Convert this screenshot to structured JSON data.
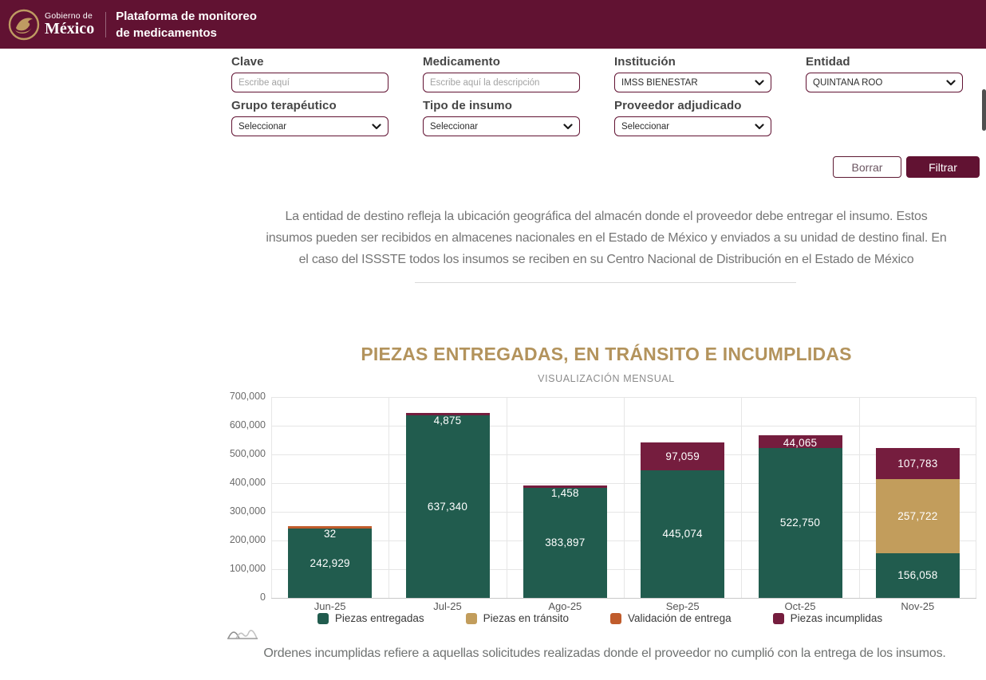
{
  "header": {
    "logo_small": "Gobierno de",
    "logo_big": "México",
    "app_title_line1": "Plataforma de monitoreo",
    "app_title_line2": "de medicamentos"
  },
  "filters": {
    "clave": {
      "label": "Clave",
      "placeholder": "Escribe aquí"
    },
    "medicamento": {
      "label": "Medicamento",
      "placeholder": "Escribe aquí la descripción"
    },
    "institucion": {
      "label": "Institución",
      "value": "IMSS BIENESTAR"
    },
    "entidad": {
      "label": "Entidad",
      "value": "QUINTANA ROO"
    },
    "grupo_terapeutico": {
      "label": "Grupo terapéutico",
      "value": "Seleccionar"
    },
    "tipo_insumo": {
      "label": "Tipo de insumo",
      "value": "Seleccionar"
    },
    "proveedor": {
      "label": "Proveedor adjudicado",
      "value": "Seleccionar"
    },
    "borrar_label": "Borrar",
    "filtrar_label": "Filtrar"
  },
  "info_note": {
    "lines": [
      "La entidad de destino refleja la ubicación geográfica del almacén donde el proveedor debe entregar el insumo. Estos",
      "insumos pueden ser recibidos en almacenes nacionales en el Estado de México y enviados a su unidad de destino final. En",
      "el caso del ISSSTE todos los insumos se reciben en su Centro Nacional de Distribución en el Estado de México"
    ]
  },
  "chart_data": {
    "type": "bar",
    "stacked": true,
    "title": "PIEZAS ENTREGADAS, EN TRÁNSITO E INCUMPLIDAS",
    "subtitle": "VISUALIZACIÓN MENSUAL",
    "categories": [
      "Jun-25",
      "Jul-25",
      "Ago-25",
      "Sep-25",
      "Oct-25",
      "Nov-25"
    ],
    "series": [
      {
        "name": "Piezas entregadas",
        "color": "#215c4e",
        "values": [
          242929,
          637340,
          383897,
          445074,
          522750,
          156058
        ]
      },
      {
        "name": "Piezas en tránsito",
        "color": "#c29d5c",
        "values": [
          0,
          0,
          0,
          0,
          0,
          257722
        ]
      },
      {
        "name": "Validación de entrega",
        "color": "#c05c2c",
        "values": [
          32,
          0,
          0,
          0,
          0,
          0
        ]
      },
      {
        "name": "Piezas incumplidas",
        "color": "#751d3e",
        "values": [
          0,
          4875,
          1458,
          97059,
          44065,
          107783
        ]
      }
    ],
    "ylim": [
      0,
      700000
    ],
    "ytick_step": 100000,
    "grid": true,
    "legend_position": "bottom"
  },
  "footer_note": "Ordenes incumplidas refiere a aquellas solicitudes realizadas donde el proveedor no cumplió con la entrega de los insumos.",
  "icons": {
    "logo": "mexico-coat-of-arms-icon",
    "select_arrow": "chevron-down-icon",
    "chart_decoration": "area-curves-icon"
  },
  "colors": {
    "header_background": "#611232",
    "accent_gold": "#b3935c",
    "button_primary": "#611232"
  }
}
